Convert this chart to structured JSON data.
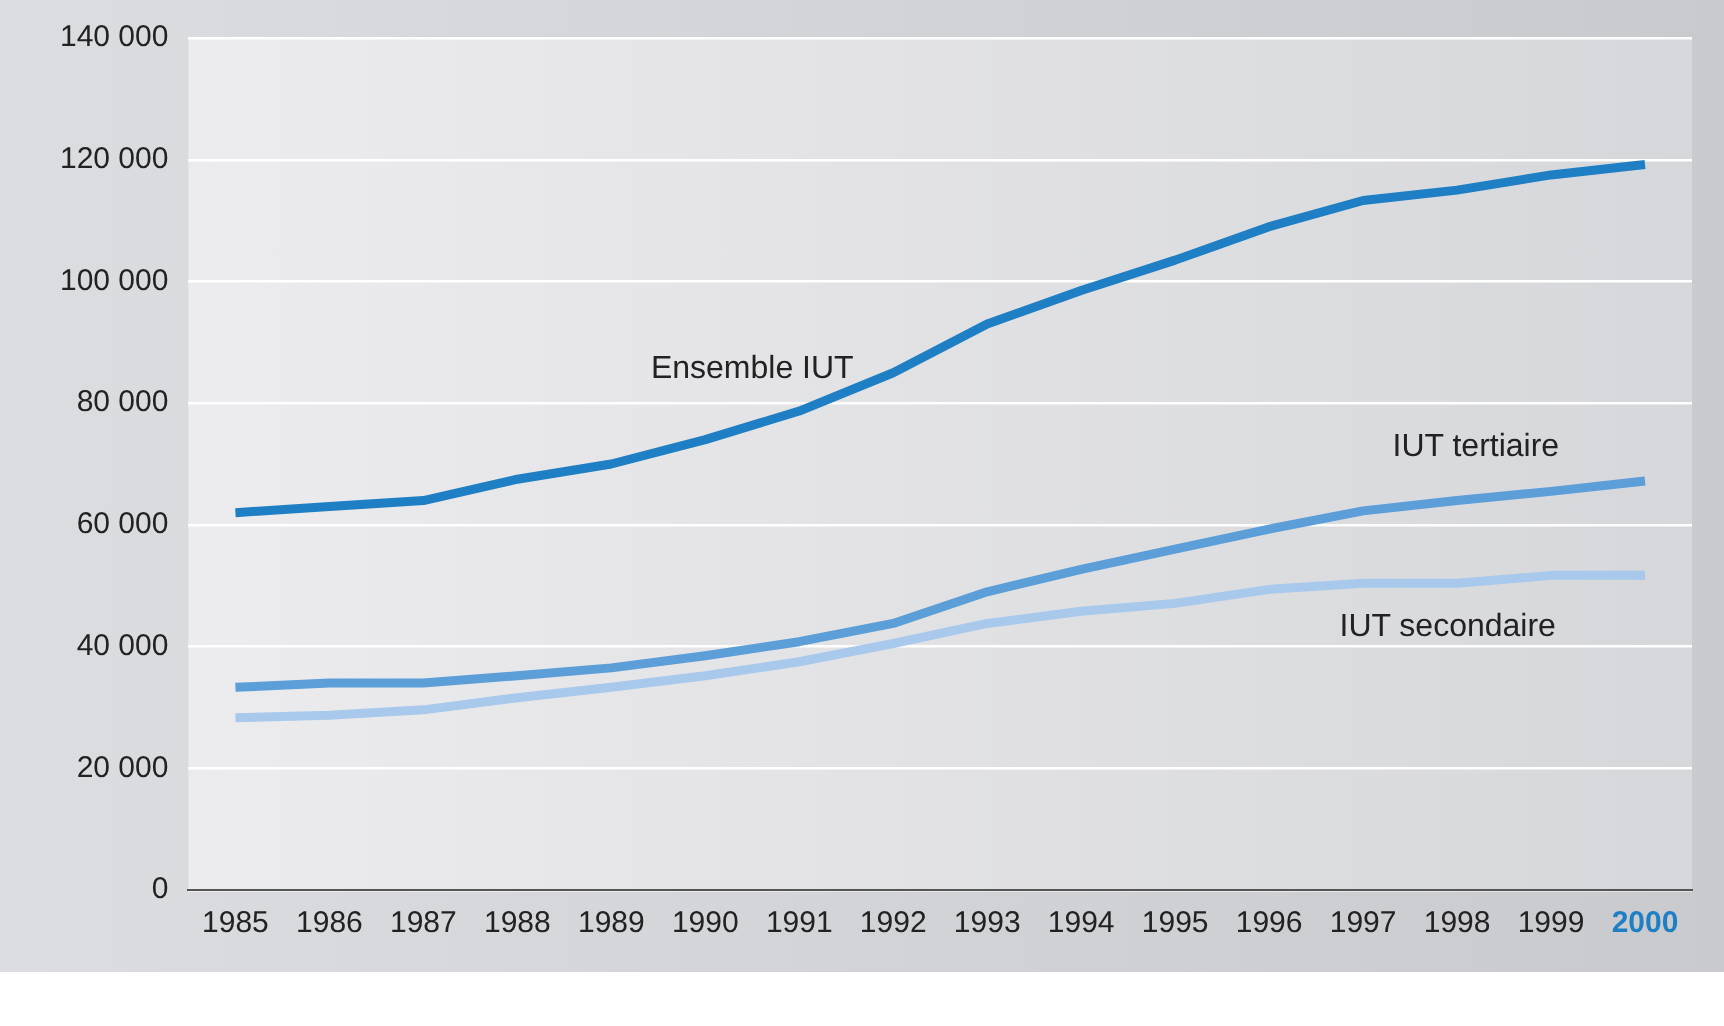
{
  "chart_data": {
    "type": "line",
    "categories": [
      "1985",
      "1986",
      "1987",
      "1988",
      "1989",
      "1990",
      "1991",
      "1992",
      "1993",
      "1994",
      "1995",
      "1996",
      "1997",
      "1998",
      "1999",
      "2000"
    ],
    "series": [
      {
        "name": "Ensemble IUT",
        "color": "#1f7fc4",
        "values": [
          62000,
          63000,
          64000,
          67500,
          70000,
          74000,
          78700,
          85000,
          93000,
          98500,
          103500,
          109000,
          113300,
          115000,
          117500,
          119200
        ]
      },
      {
        "name": "IUT tertiaire",
        "color": "#5b9ed8",
        "values": [
          33300,
          34000,
          34000,
          35200,
          36500,
          38500,
          40800,
          43800,
          49000,
          52700,
          56000,
          59300,
          62300,
          64000,
          65500,
          67200
        ]
      },
      {
        "name": "IUT secondaire",
        "color": "#a8c9ec",
        "values": [
          28300,
          28700,
          29600,
          31600,
          33300,
          35200,
          37500,
          40500,
          43800,
          45800,
          47100,
          49400,
          50400,
          50400,
          51700,
          51700
        ]
      }
    ],
    "ylim": [
      0,
      140000
    ],
    "yticks": [
      {
        "value": 0,
        "label": "0"
      },
      {
        "value": 20000,
        "label": "20 000"
      },
      {
        "value": 40000,
        "label": "40 000"
      },
      {
        "value": 60000,
        "label": "60 000"
      },
      {
        "value": 80000,
        "label": "80 000"
      },
      {
        "value": 100000,
        "label": "100 000"
      },
      {
        "value": 120000,
        "label": "120 000"
      },
      {
        "value": 140000,
        "label": "140 000"
      }
    ],
    "grid": "y",
    "legend": false,
    "marker": "none",
    "line_style": "solid"
  }
}
